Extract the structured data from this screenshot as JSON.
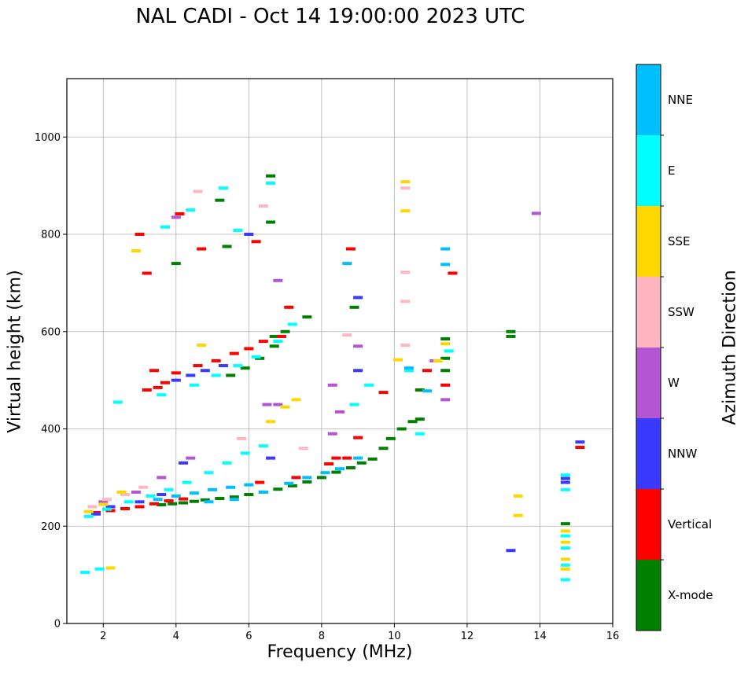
{
  "chart_data": {
    "type": "scatter",
    "title": "NAL CADI - Oct 14 19:00:00 2023 UTC",
    "xlabel": "Frequency (MHz)",
    "ylabel": "Virtual height (km)",
    "xlim": [
      1,
      16
    ],
    "ylim": [
      0,
      1120
    ],
    "xticks": [
      "2",
      "4",
      "6",
      "8",
      "10",
      "12",
      "14",
      "16"
    ],
    "yticks": [
      "0",
      "200",
      "400",
      "600",
      "800",
      "1000"
    ],
    "grid": true,
    "colorbar": {
      "label": "Azimuth Direction",
      "categories": [
        {
          "name": "X-mode",
          "color": "#008000"
        },
        {
          "name": "Vertical",
          "color": "#ff0000"
        },
        {
          "name": "NNW",
          "color": "#3a3aff"
        },
        {
          "name": "W",
          "color": "#b455d4"
        },
        {
          "name": "SSW",
          "color": "#ffb6c1"
        },
        {
          "name": "SSE",
          "color": "#ffd700"
        },
        {
          "name": "E",
          "color": "#00ffff"
        },
        {
          "name": "NNE",
          "color": "#00bfff"
        }
      ]
    },
    "series": [
      {
        "name": "X-mode",
        "points": [
          [
            3.6,
            244
          ],
          [
            3.9,
            246
          ],
          [
            4.2,
            248
          ],
          [
            4.5,
            251
          ],
          [
            4.8,
            254
          ],
          [
            5.2,
            257
          ],
          [
            5.6,
            260
          ],
          [
            6.0,
            265
          ],
          [
            6.4,
            270
          ],
          [
            6.8,
            276
          ],
          [
            7.2,
            283
          ],
          [
            7.6,
            291
          ],
          [
            8.0,
            300
          ],
          [
            8.4,
            311
          ],
          [
            8.8,
            320
          ],
          [
            9.1,
            330
          ],
          [
            9.4,
            338
          ],
          [
            9.7,
            360
          ],
          [
            9.9,
            380
          ],
          [
            10.2,
            400
          ],
          [
            10.5,
            415
          ],
          [
            10.7,
            420
          ],
          [
            4.0,
            740
          ],
          [
            5.4,
            775
          ],
          [
            6.6,
            825
          ],
          [
            6.6,
            920
          ],
          [
            5.2,
            870
          ],
          [
            5.5,
            510
          ],
          [
            5.9,
            525
          ],
          [
            6.3,
            545
          ],
          [
            6.7,
            570
          ],
          [
            6.7,
            590
          ],
          [
            7.0,
            600
          ],
          [
            7.6,
            630
          ],
          [
            8.9,
            650
          ],
          [
            10.7,
            480
          ],
          [
            11.4,
            520
          ],
          [
            11.4,
            545
          ],
          [
            11.4,
            585
          ],
          [
            13.2,
            590
          ],
          [
            13.2,
            600
          ],
          [
            14.7,
            205
          ]
        ]
      },
      {
        "name": "Vertical",
        "points": [
          [
            1.8,
            228
          ],
          [
            2.2,
            232
          ],
          [
            2.6,
            236
          ],
          [
            3.0,
            240
          ],
          [
            3.4,
            246
          ],
          [
            3.8,
            252
          ],
          [
            4.2,
            256
          ],
          [
            3.2,
            480
          ],
          [
            3.5,
            485
          ],
          [
            3.7,
            495
          ],
          [
            3.4,
            520
          ],
          [
            4.0,
            515
          ],
          [
            4.6,
            530
          ],
          [
            5.1,
            540
          ],
          [
            5.6,
            555
          ],
          [
            6.0,
            565
          ],
          [
            6.4,
            580
          ],
          [
            6.9,
            590
          ],
          [
            7.1,
            650
          ],
          [
            8.4,
            340
          ],
          [
            8.7,
            340
          ],
          [
            9.0,
            382
          ],
          [
            9.7,
            475
          ],
          [
            10.9,
            520
          ],
          [
            11.4,
            490
          ],
          [
            11.6,
            720
          ],
          [
            3.2,
            720
          ],
          [
            4.1,
            842
          ],
          [
            4.7,
            770
          ],
          [
            6.2,
            785
          ],
          [
            15.1,
            362
          ],
          [
            6.3,
            290
          ],
          [
            7.3,
            300
          ],
          [
            3.0,
            800
          ],
          [
            8.2,
            328
          ],
          [
            8.8,
            770
          ]
        ]
      },
      {
        "name": "NNW",
        "points": [
          [
            1.8,
            225
          ],
          [
            2.2,
            240
          ],
          [
            3.0,
            250
          ],
          [
            3.6,
            265
          ],
          [
            4.2,
            330
          ],
          [
            4.0,
            500
          ],
          [
            4.4,
            510
          ],
          [
            4.8,
            520
          ],
          [
            5.3,
            530
          ],
          [
            6.6,
            340
          ],
          [
            6.0,
            800
          ],
          [
            9.0,
            520
          ],
          [
            9.0,
            670
          ],
          [
            13.2,
            150
          ],
          [
            14.7,
            290
          ],
          [
            14.7,
            298
          ],
          [
            15.1,
            373
          ]
        ]
      },
      {
        "name": "W",
        "points": [
          [
            2.0,
            250
          ],
          [
            2.9,
            270
          ],
          [
            3.6,
            300
          ],
          [
            4.4,
            340
          ],
          [
            6.5,
            450
          ],
          [
            6.8,
            450
          ],
          [
            8.3,
            390
          ],
          [
            8.3,
            490
          ],
          [
            8.5,
            435
          ],
          [
            9.0,
            570
          ],
          [
            11.4,
            460
          ],
          [
            11.1,
            540
          ],
          [
            13.9,
            843
          ],
          [
            4.0,
            835
          ],
          [
            6.8,
            705
          ]
        ]
      },
      {
        "name": "SSW",
        "points": [
          [
            1.7,
            240
          ],
          [
            2.1,
            255
          ],
          [
            2.6,
            265
          ],
          [
            3.1,
            280
          ],
          [
            4.6,
            888
          ],
          [
            6.4,
            858
          ],
          [
            10.3,
            572
          ],
          [
            10.3,
            662
          ],
          [
            10.3,
            722
          ],
          [
            10.3,
            895
          ],
          [
            8.7,
            593
          ],
          [
            7.5,
            360
          ],
          [
            5.8,
            380
          ]
        ]
      },
      {
        "name": "SSE",
        "points": [
          [
            1.6,
            230
          ],
          [
            2.0,
            245
          ],
          [
            2.5,
            270
          ],
          [
            2.9,
            766
          ],
          [
            4.7,
            572
          ],
          [
            6.6,
            415
          ],
          [
            7.0,
            445
          ],
          [
            7.3,
            460
          ],
          [
            10.3,
            908
          ],
          [
            10.3,
            848
          ],
          [
            10.1,
            542
          ],
          [
            11.4,
            575
          ],
          [
            11.2,
            540
          ],
          [
            13.4,
            262
          ],
          [
            13.4,
            222
          ],
          [
            14.7,
            132
          ],
          [
            14.7,
            112
          ],
          [
            14.7,
            167
          ],
          [
            14.7,
            190
          ],
          [
            2.2,
            114
          ]
        ]
      },
      {
        "name": "E",
        "points": [
          [
            1.6,
            220
          ],
          [
            2.1,
            235
          ],
          [
            2.7,
            250
          ],
          [
            3.3,
            262
          ],
          [
            3.8,
            275
          ],
          [
            4.3,
            290
          ],
          [
            4.9,
            310
          ],
          [
            5.4,
            330
          ],
          [
            5.9,
            350
          ],
          [
            6.4,
            365
          ],
          [
            2.4,
            455
          ],
          [
            3.6,
            470
          ],
          [
            4.5,
            490
          ],
          [
            5.1,
            510
          ],
          [
            5.7,
            530
          ],
          [
            6.2,
            548
          ],
          [
            6.8,
            580
          ],
          [
            7.2,
            615
          ],
          [
            3.7,
            815
          ],
          [
            4.4,
            850
          ],
          [
            5.3,
            895
          ],
          [
            6.6,
            905
          ],
          [
            5.7,
            808
          ],
          [
            10.7,
            390
          ],
          [
            10.4,
            520
          ],
          [
            11.5,
            560
          ],
          [
            14.7,
            275
          ],
          [
            14.7,
            305
          ],
          [
            14.7,
            180
          ],
          [
            14.7,
            155
          ],
          [
            14.7,
            120
          ],
          [
            14.7,
            90
          ],
          [
            1.5,
            105
          ],
          [
            1.9,
            112
          ],
          [
            8.9,
            450
          ],
          [
            9.3,
            490
          ]
        ]
      },
      {
        "name": "NNE",
        "points": [
          [
            3.5,
            255
          ],
          [
            4.0,
            262
          ],
          [
            4.5,
            268
          ],
          [
            5.0,
            275
          ],
          [
            5.5,
            280
          ],
          [
            6.0,
            285
          ],
          [
            7.6,
            300
          ],
          [
            8.1,
            310
          ],
          [
            8.5,
            318
          ],
          [
            9.0,
            340
          ],
          [
            4.9,
            250
          ],
          [
            5.6,
            255
          ],
          [
            6.4,
            270
          ],
          [
            7.1,
            288
          ],
          [
            8.7,
            740
          ],
          [
            11.4,
            770
          ],
          [
            11.4,
            738
          ],
          [
            10.4,
            525
          ],
          [
            10.9,
            478
          ]
        ]
      }
    ]
  }
}
